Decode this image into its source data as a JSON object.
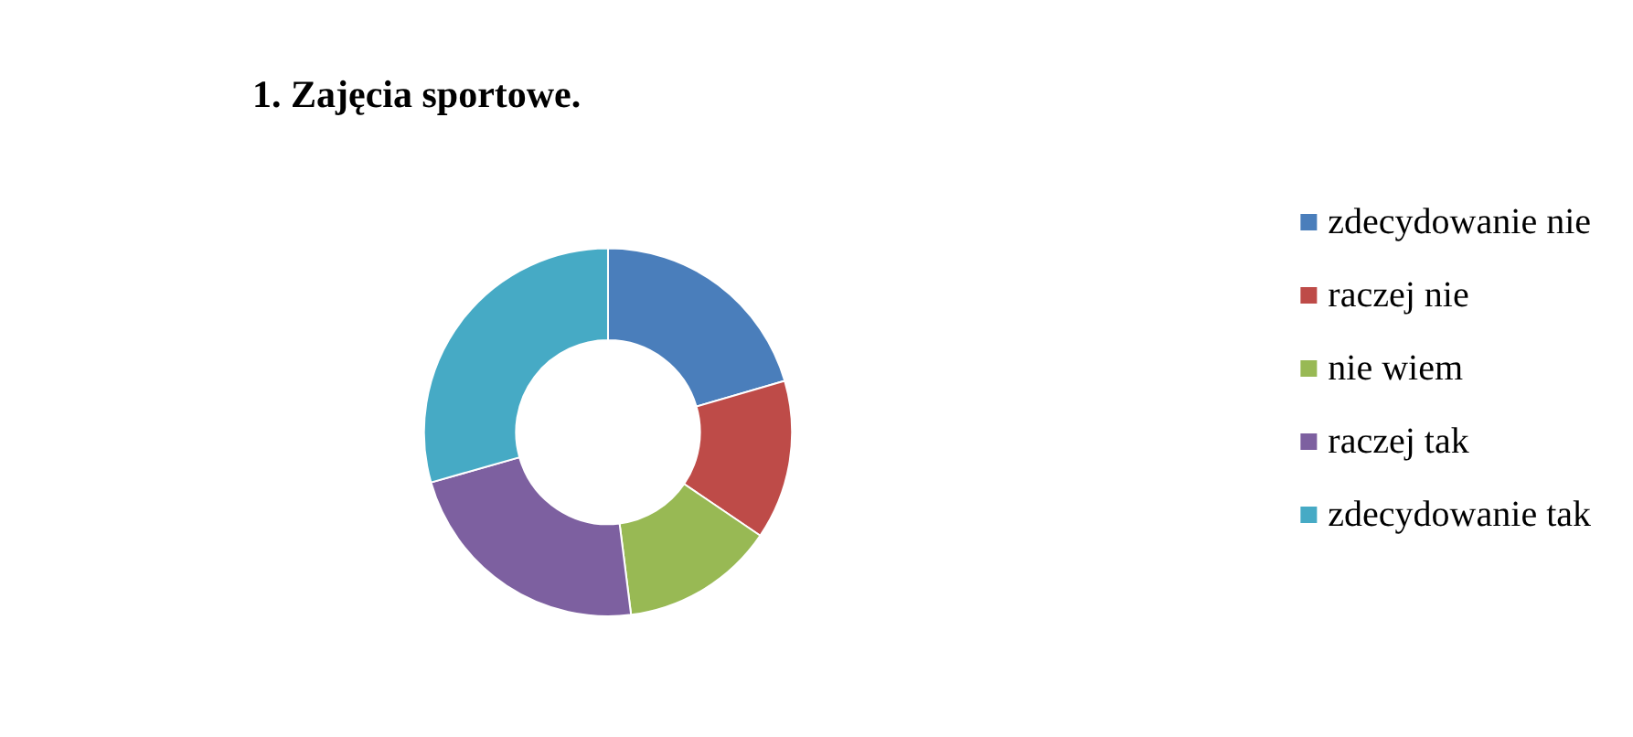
{
  "chart_data": {
    "type": "donut",
    "title": "1. Zajęcia sportowe.",
    "categories": [
      "zdecydowanie nie",
      "raczej nie",
      "nie wiem",
      "raczej tak",
      "zdecydowanie tak"
    ],
    "values": [
      20.5,
      14,
      13.5,
      22.6,
      29.4
    ],
    "colors": [
      "#4a7ebb",
      "#be4b48",
      "#98b954",
      "#7d60a0",
      "#46aac5"
    ],
    "legend": "right"
  }
}
